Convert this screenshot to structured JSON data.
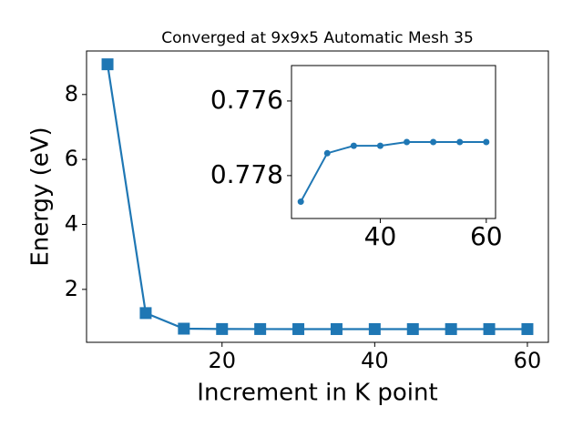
{
  "chart_data": [
    {
      "type": "line",
      "title": "Converged at 9x9x5 Automatic Mesh 35",
      "xlabel": "Increment in K point",
      "ylabel": "Energy (eV)",
      "x": [
        5,
        10,
        15,
        20,
        25,
        30,
        35,
        40,
        45,
        50,
        55,
        60
      ],
      "values": [
        8.93,
        1.27,
        0.79,
        0.779,
        0.7787,
        0.7774,
        0.7772,
        0.7772,
        0.7771,
        0.7771,
        0.7771,
        0.7771
      ],
      "color": "#1f77b4",
      "marker": "square",
      "xlim": [
        2.25,
        62.75
      ],
      "ylim": [
        0.37,
        9.34
      ],
      "xticks": [
        20,
        40,
        60
      ],
      "yticks": [
        2,
        4,
        6,
        8
      ]
    },
    {
      "type": "line",
      "x": [
        25,
        30,
        35,
        40,
        45,
        50,
        55,
        60
      ],
      "values": [
        0.7787,
        0.7774,
        0.7772,
        0.7772,
        0.7771,
        0.7771,
        0.7771,
        0.7771
      ],
      "color": "#1f77b4",
      "marker": "circle",
      "xlim": [
        23.25,
        61.75
      ],
      "ylim": [
        0.77505,
        0.77915
      ],
      "y_inverted": true,
      "xticks": [
        40,
        60
      ],
      "yticks": [
        0.776,
        0.778
      ]
    }
  ]
}
